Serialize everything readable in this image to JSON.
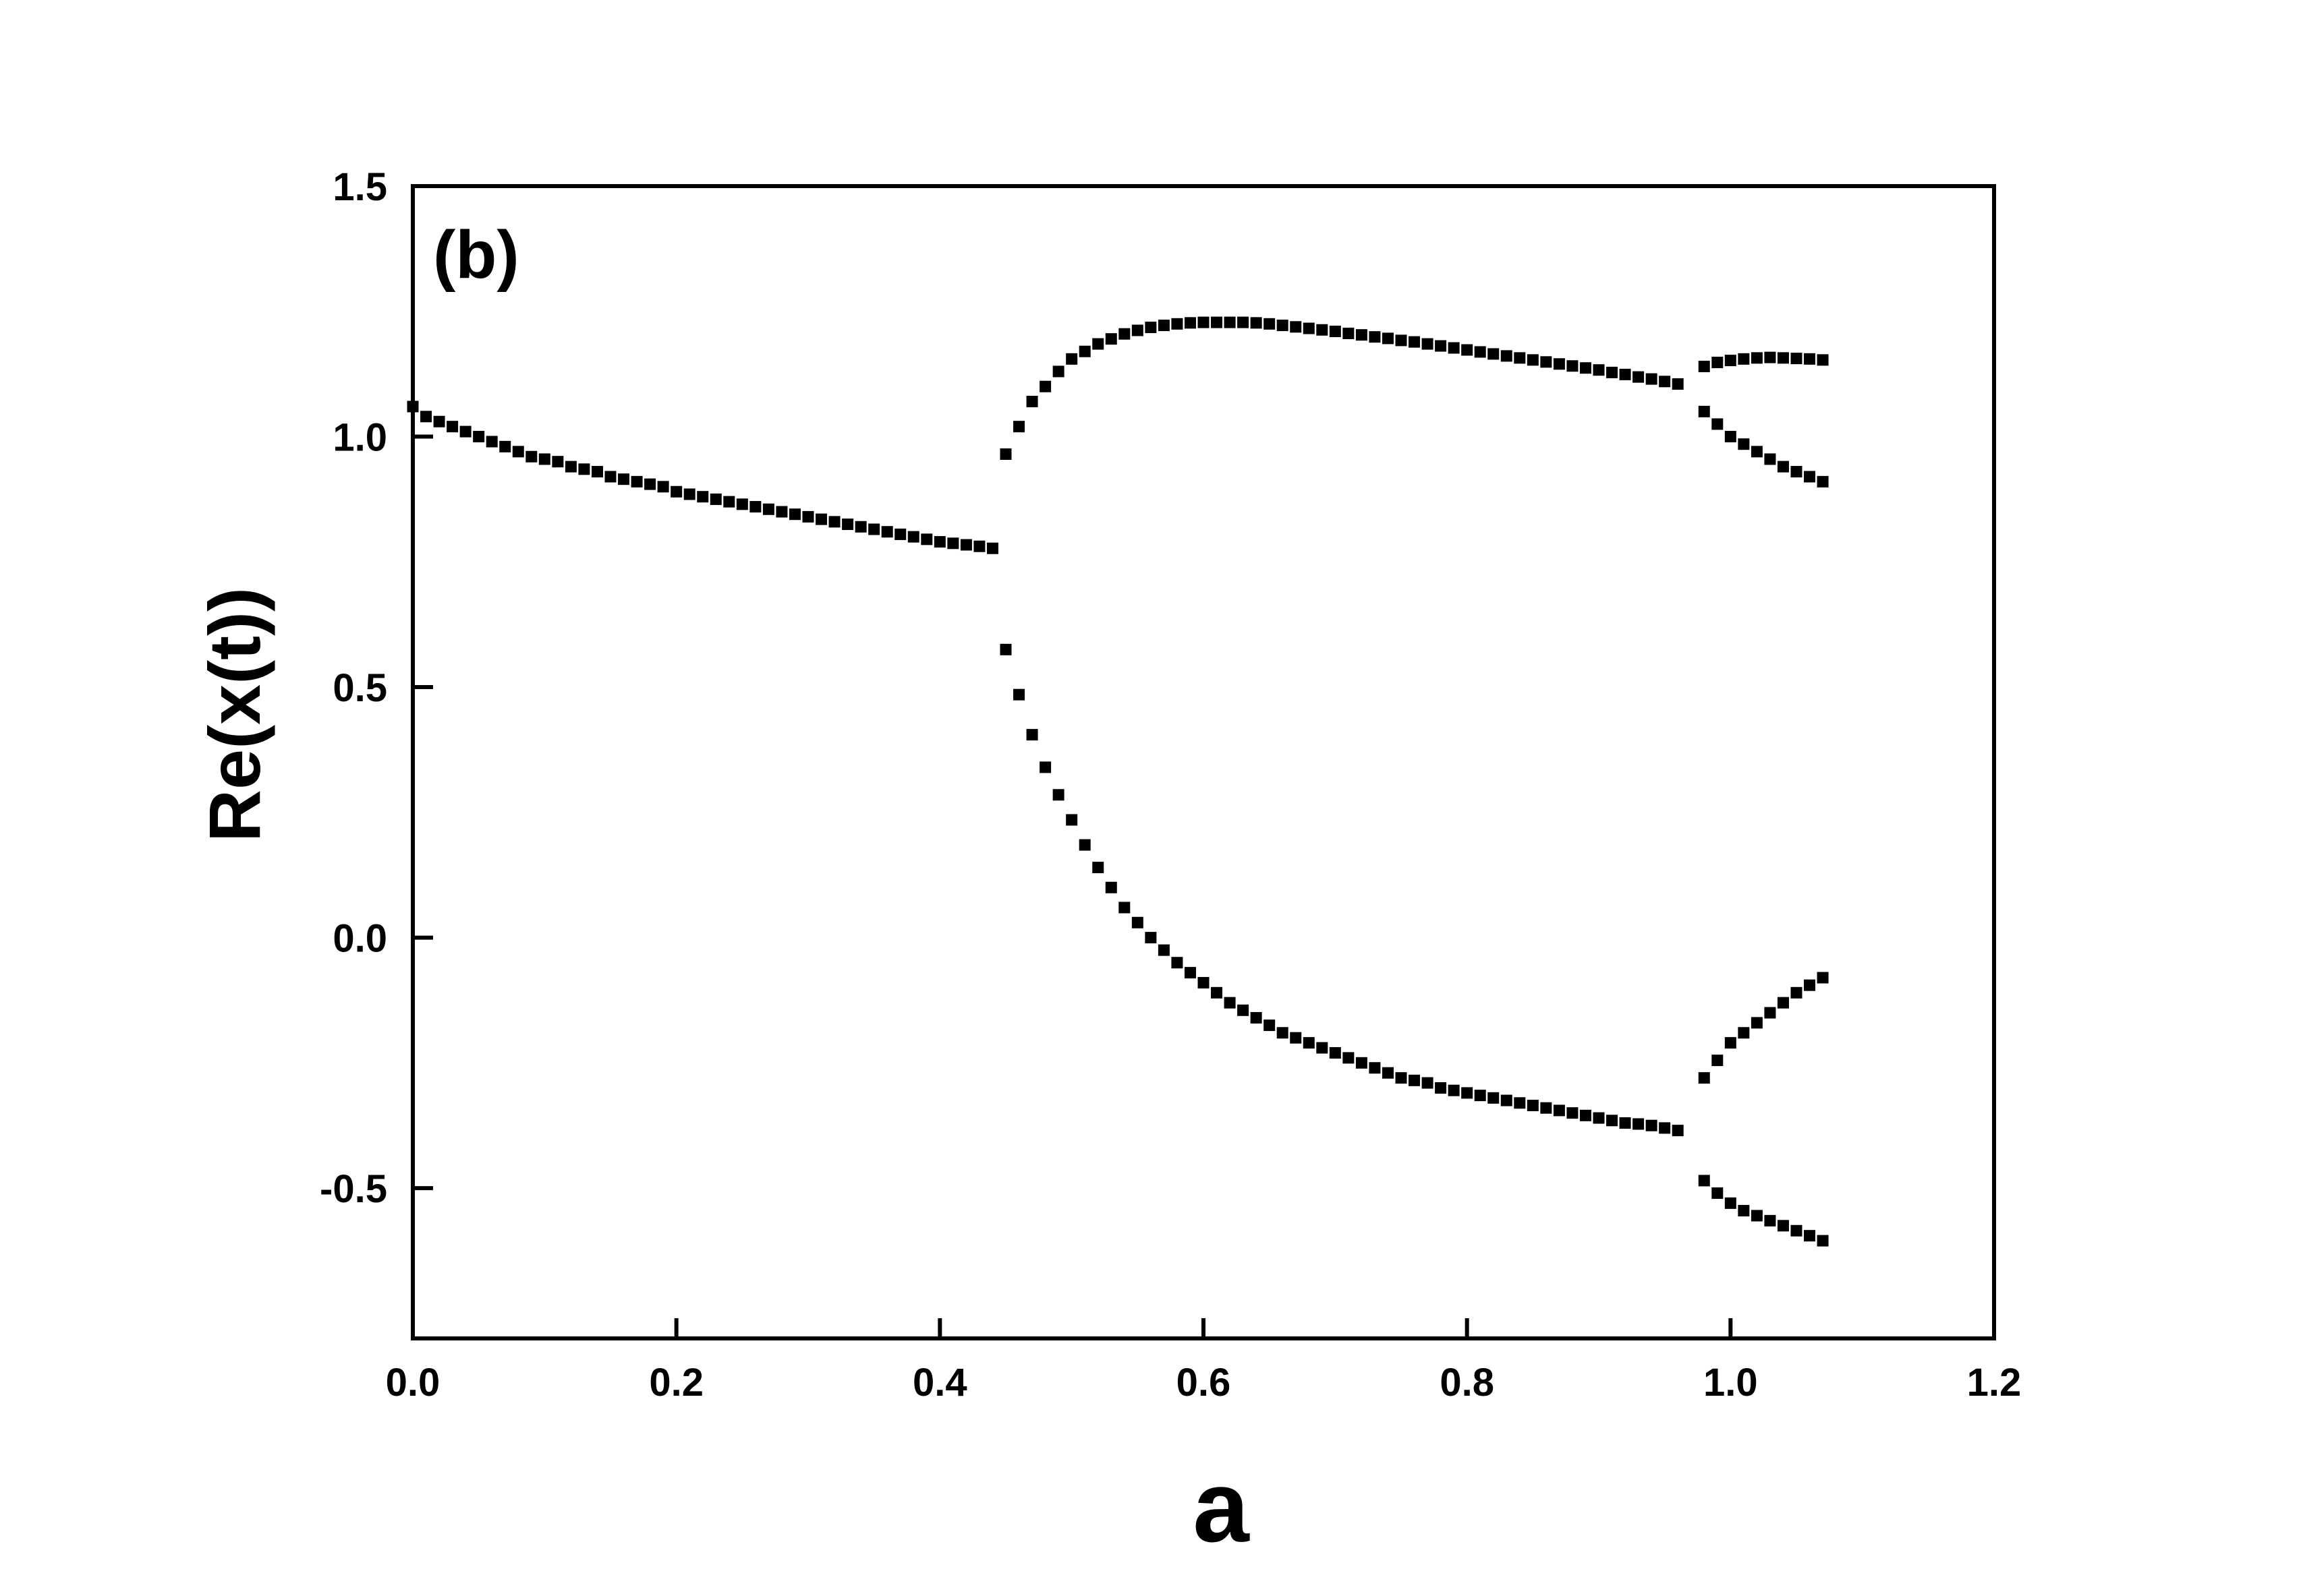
{
  "chart_data": {
    "type": "scatter",
    "panel_label": "(b)",
    "xlabel": "a",
    "ylabel": "Re(x(t))",
    "xlim": [
      0.0,
      1.2
    ],
    "ylim": [
      -0.8,
      1.5
    ],
    "x_ticks": [
      0.0,
      0.2,
      0.4,
      0.6,
      0.8,
      1.0,
      1.2
    ],
    "x_tick_labels": [
      "0.0",
      "0.2",
      "0.4",
      "0.6",
      "0.8",
      "1.0",
      "1.2"
    ],
    "y_ticks": [
      -0.5,
      0.0,
      0.5,
      1.0,
      1.5
    ],
    "y_tick_labels": [
      "-0.5",
      "0.0",
      "0.5",
      "1.0",
      "1.5"
    ],
    "grid": false,
    "legend": "none",
    "marker": "square",
    "marker_color": "#000000",
    "series": [
      {
        "x": [
          0.0,
          0.01,
          0.02,
          0.03,
          0.04,
          0.05,
          0.06,
          0.07,
          0.08,
          0.09,
          0.1,
          0.11,
          0.12,
          0.13,
          0.14,
          0.15,
          0.16,
          0.17,
          0.18,
          0.19,
          0.2,
          0.21,
          0.22,
          0.23,
          0.24,
          0.25,
          0.26,
          0.27,
          0.28,
          0.29,
          0.3,
          0.31,
          0.32,
          0.33,
          0.34,
          0.35,
          0.36,
          0.37,
          0.38,
          0.39,
          0.4,
          0.41,
          0.42,
          0.43,
          0.44
        ],
        "y": [
          1.06,
          1.04,
          1.03,
          1.02,
          1.01,
          1.0,
          0.99,
          0.98,
          0.97,
          0.96,
          0.955,
          0.95,
          0.94,
          0.935,
          0.93,
          0.92,
          0.915,
          0.91,
          0.905,
          0.9,
          0.89,
          0.885,
          0.88,
          0.875,
          0.87,
          0.865,
          0.86,
          0.855,
          0.85,
          0.845,
          0.84,
          0.835,
          0.83,
          0.825,
          0.82,
          0.815,
          0.81,
          0.805,
          0.8,
          0.795,
          0.79,
          0.787,
          0.784,
          0.781,
          0.777
        ]
      },
      {
        "x": [
          0.45,
          0.46,
          0.47,
          0.48,
          0.49,
          0.5,
          0.51,
          0.52,
          0.53,
          0.54,
          0.55,
          0.56,
          0.57,
          0.58,
          0.59,
          0.6,
          0.61,
          0.62,
          0.63,
          0.64,
          0.65,
          0.66,
          0.67,
          0.68,
          0.69,
          0.7,
          0.71,
          0.72,
          0.73,
          0.74,
          0.75,
          0.76,
          0.77,
          0.78,
          0.79,
          0.8,
          0.81,
          0.82,
          0.83,
          0.84,
          0.85,
          0.86,
          0.87,
          0.88,
          0.89,
          0.9,
          0.91,
          0.92,
          0.93,
          0.94,
          0.95,
          0.96
        ],
        "y": [
          0.965,
          1.02,
          1.07,
          1.1,
          1.13,
          1.155,
          1.17,
          1.185,
          1.195,
          1.205,
          1.212,
          1.218,
          1.222,
          1.225,
          1.227,
          1.228,
          1.228,
          1.228,
          1.228,
          1.227,
          1.225,
          1.222,
          1.219,
          1.216,
          1.213,
          1.21,
          1.206,
          1.203,
          1.199,
          1.196,
          1.192,
          1.189,
          1.185,
          1.181,
          1.177,
          1.173,
          1.169,
          1.165,
          1.161,
          1.157,
          1.153,
          1.149,
          1.145,
          1.141,
          1.137,
          1.133,
          1.128,
          1.124,
          1.119,
          1.115,
          1.11,
          1.105
        ]
      },
      {
        "x": [
          0.45,
          0.46,
          0.47,
          0.48,
          0.49,
          0.5,
          0.51,
          0.52,
          0.53,
          0.54,
          0.55,
          0.56,
          0.57,
          0.58,
          0.59,
          0.6,
          0.61,
          0.62,
          0.63,
          0.64,
          0.65,
          0.66,
          0.67,
          0.68,
          0.69,
          0.7,
          0.71,
          0.72,
          0.73,
          0.74,
          0.75,
          0.76,
          0.77,
          0.78,
          0.79,
          0.8,
          0.81,
          0.82,
          0.83,
          0.84,
          0.85,
          0.86,
          0.87,
          0.88,
          0.89,
          0.9,
          0.91,
          0.92,
          0.93,
          0.94,
          0.95,
          0.96
        ],
        "y": [
          0.575,
          0.485,
          0.405,
          0.34,
          0.285,
          0.235,
          0.185,
          0.14,
          0.1,
          0.06,
          0.03,
          0.0,
          -0.025,
          -0.05,
          -0.07,
          -0.09,
          -0.11,
          -0.13,
          -0.145,
          -0.16,
          -0.175,
          -0.19,
          -0.2,
          -0.21,
          -0.22,
          -0.23,
          -0.24,
          -0.25,
          -0.26,
          -0.27,
          -0.28,
          -0.285,
          -0.29,
          -0.3,
          -0.305,
          -0.31,
          -0.315,
          -0.32,
          -0.325,
          -0.33,
          -0.335,
          -0.34,
          -0.345,
          -0.35,
          -0.355,
          -0.36,
          -0.365,
          -0.37,
          -0.372,
          -0.375,
          -0.38,
          -0.385
        ]
      },
      {
        "x": [
          0.98,
          0.99,
          1.0,
          1.01,
          1.02,
          1.03,
          1.04,
          1.05,
          1.06,
          1.07
        ],
        "y": [
          1.14,
          1.148,
          1.152,
          1.155,
          1.157,
          1.158,
          1.157,
          1.156,
          1.155,
          1.153
        ]
      },
      {
        "x": [
          0.98,
          0.99,
          1.0,
          1.01,
          1.02,
          1.03,
          1.04,
          1.05,
          1.06,
          1.07
        ],
        "y": [
          1.05,
          1.025,
          1.0,
          0.985,
          0.97,
          0.955,
          0.94,
          0.93,
          0.92,
          0.91
        ]
      },
      {
        "x": [
          0.98,
          0.99,
          1.0,
          1.01,
          1.02,
          1.03,
          1.04,
          1.05,
          1.06,
          1.07
        ],
        "y": [
          -0.28,
          -0.245,
          -0.21,
          -0.19,
          -0.17,
          -0.15,
          -0.13,
          -0.11,
          -0.095,
          -0.08
        ]
      },
      {
        "x": [
          0.98,
          0.99,
          1.0,
          1.01,
          1.02,
          1.03,
          1.04,
          1.05,
          1.06,
          1.07
        ],
        "y": [
          -0.485,
          -0.51,
          -0.53,
          -0.545,
          -0.555,
          -0.565,
          -0.575,
          -0.585,
          -0.595,
          -0.605
        ]
      }
    ]
  }
}
